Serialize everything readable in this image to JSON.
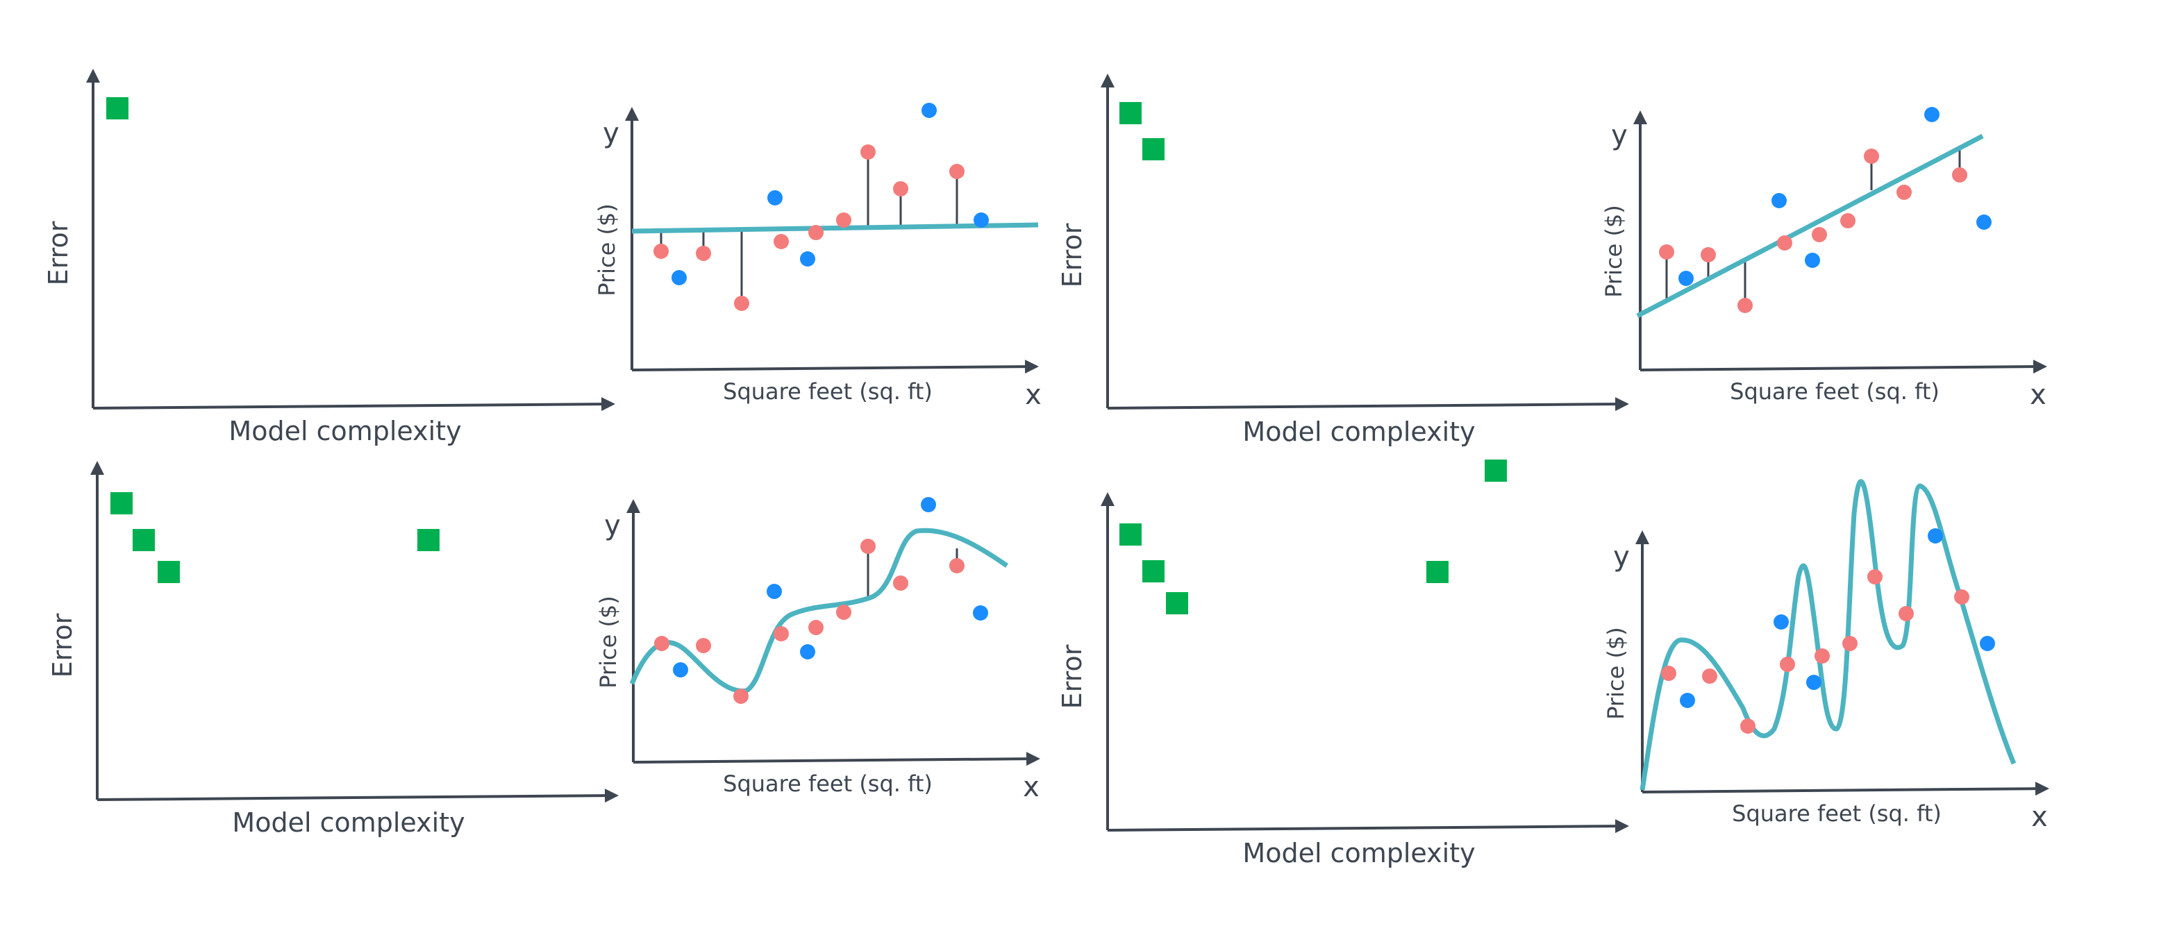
{
  "labels": {
    "error": "Error",
    "model_complexity": "Model complexity",
    "y": "y",
    "x": "x",
    "price": "Price ($)",
    "sqft": "Square feet (sq. ft)"
  },
  "colors": {
    "axis": "#3d4651",
    "marker": "#00b050",
    "fit_line": "#4cb3c0",
    "train_point": "#f47b7b",
    "test_point": "#1a8cff",
    "residual": "#3d4651"
  },
  "panels": [
    {
      "error_points": 1
    },
    {
      "error_points": 2
    },
    {
      "error_points": 4
    },
    {
      "error_points": 5
    }
  ]
}
